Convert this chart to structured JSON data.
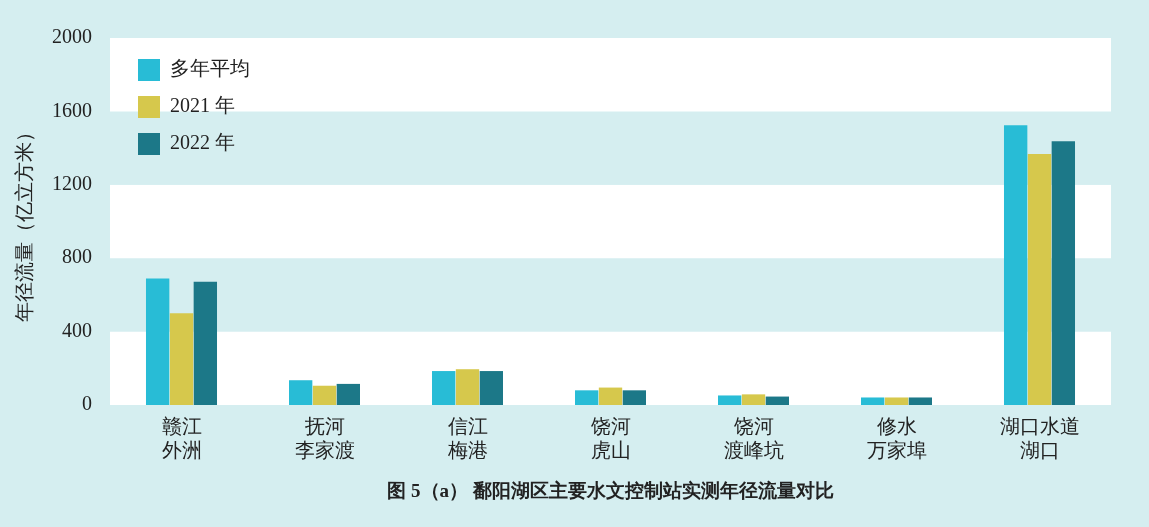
{
  "chart_data": {
    "type": "bar",
    "title": "图 5（a） 鄱阳湖区主要水文控制站实测年径流量对比",
    "ylabel": "年径流量（亿立方米）",
    "categories": [
      "赣江外洲",
      "抚河李家渡",
      "信江梅港",
      "饶河虎山",
      "饶河渡峰坑",
      "修水万家埠",
      "湖口水道湖口"
    ],
    "series": [
      {
        "name": "多年平均",
        "color": "#28bcd6",
        "values": [
          690,
          135,
          185,
          80,
          52,
          41,
          1525
        ]
      },
      {
        "name": "2021 年",
        "color": "#d6c84c",
        "values": [
          500,
          105,
          195,
          95,
          58,
          41,
          1368
        ]
      },
      {
        "name": "2022 年",
        "color": "#1c7888",
        "values": [
          672,
          115,
          185,
          80,
          46,
          41,
          1438
        ]
      }
    ],
    "ylim": [
      0,
      2000
    ],
    "yticks": [
      0,
      400,
      800,
      1200,
      1600,
      2000
    ],
    "legend": "top left"
  }
}
